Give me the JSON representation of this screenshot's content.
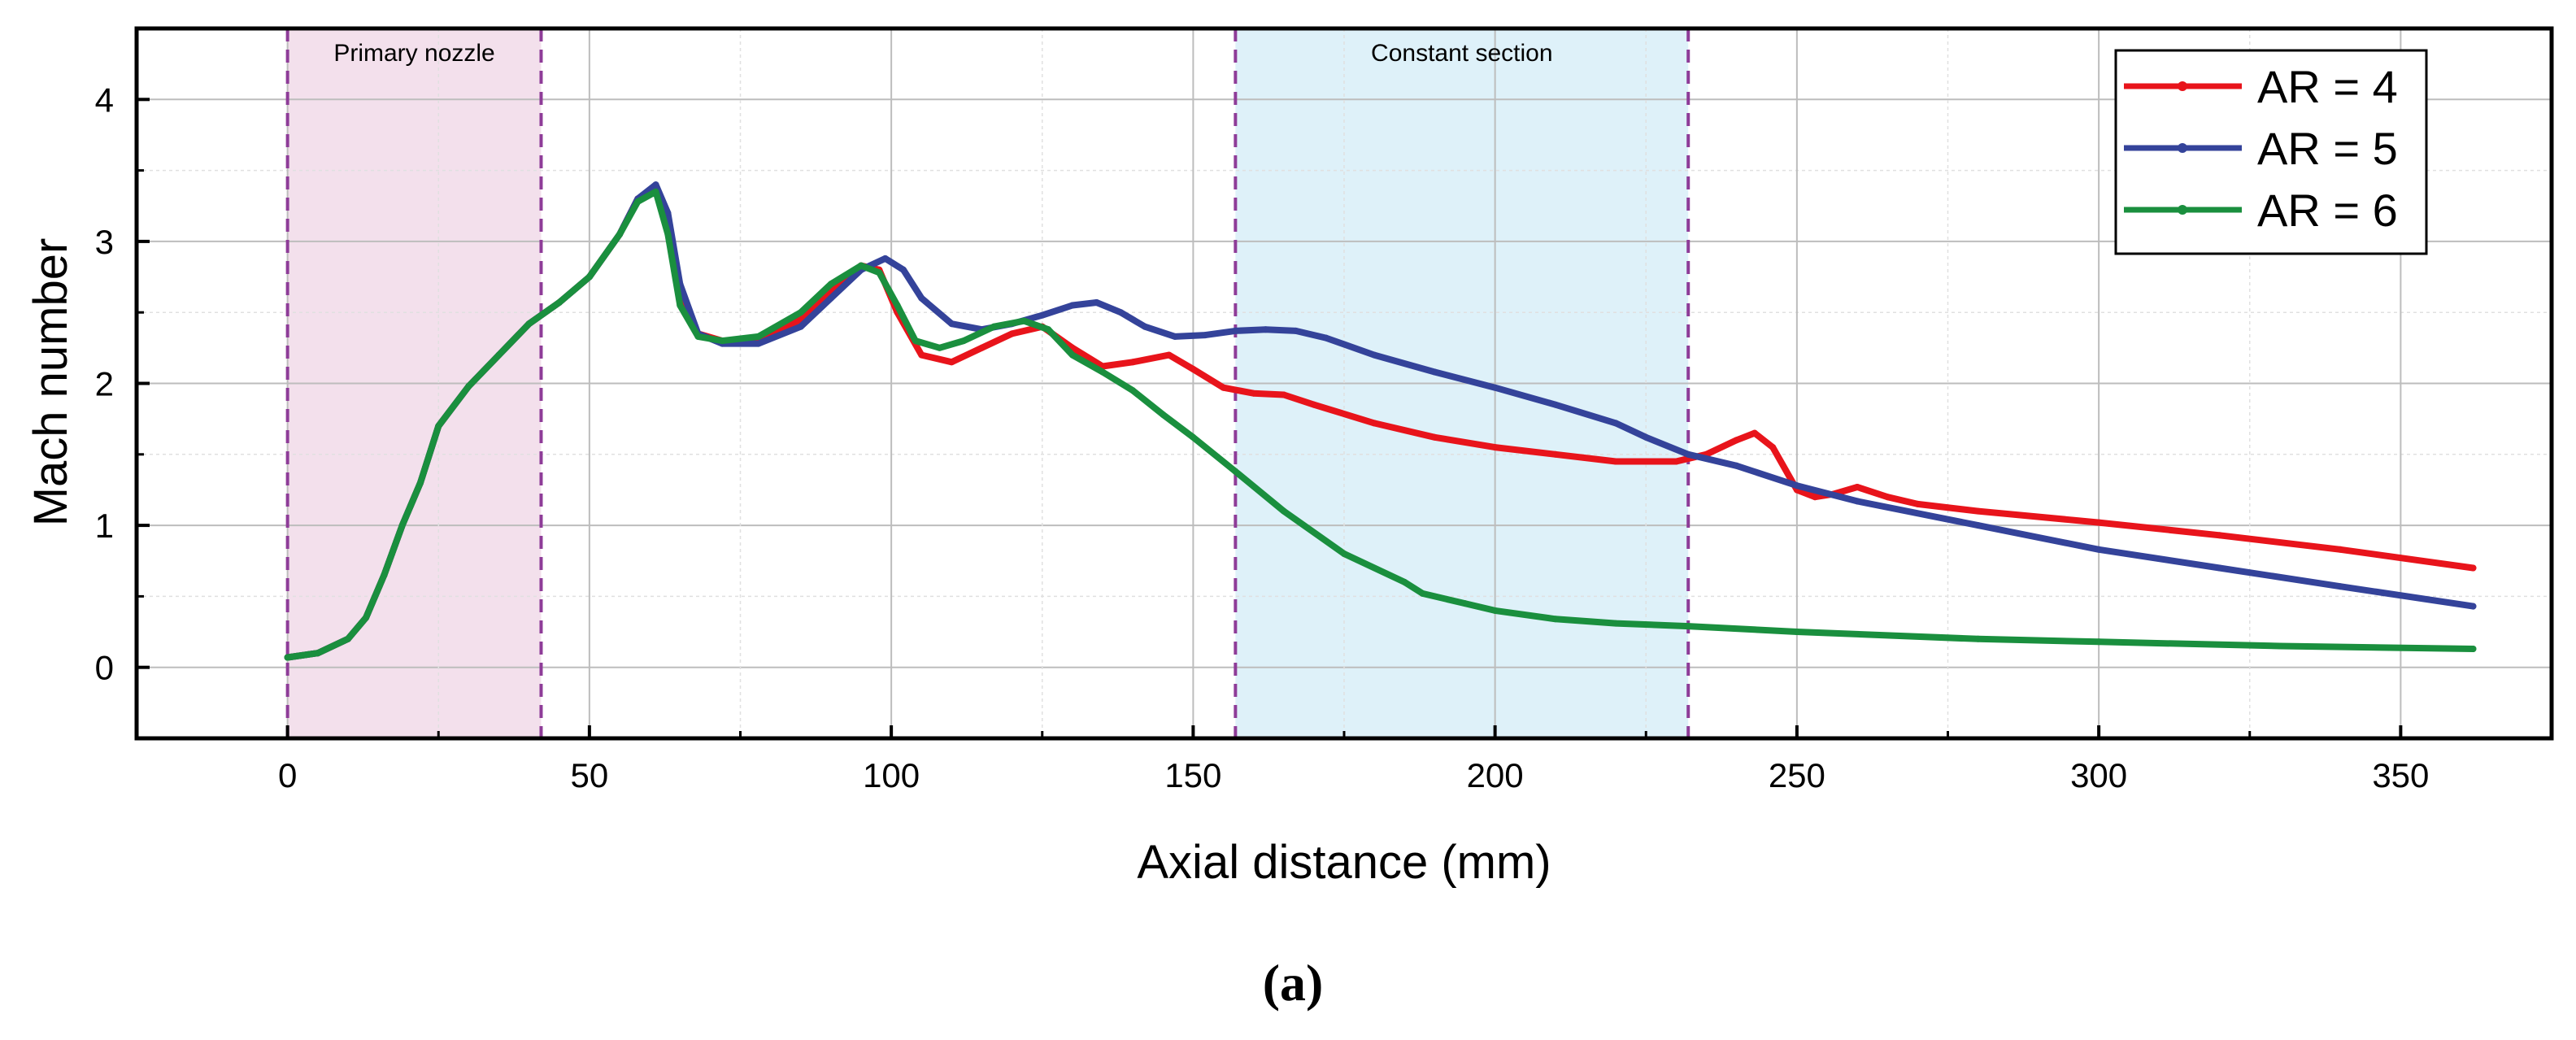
{
  "chart_data": {
    "type": "line",
    "xlabel": "Axial distance (mm)",
    "ylabel": "Mach number",
    "xlim": [
      -25,
      375
    ],
    "ylim": [
      -0.5,
      4.5
    ],
    "xticks": [
      0,
      50,
      100,
      150,
      200,
      250,
      300,
      350
    ],
    "yticks": [
      0,
      1,
      2,
      3,
      4
    ],
    "grid": true,
    "legend_position": "top-right",
    "regions": [
      {
        "label": "Primary nozzle",
        "x_start": 0,
        "x_end": 42,
        "color": "#f3e0ec"
      },
      {
        "label": "Constant section",
        "x_start": 157,
        "x_end": 232,
        "color": "#def1f9"
      }
    ],
    "series": [
      {
        "name": "AR = 4",
        "color": "#e8141b",
        "x": [
          0,
          5,
          10,
          13,
          16,
          19,
          22,
          25,
          30,
          35,
          40,
          45,
          50,
          55,
          58,
          61,
          63,
          65,
          68,
          72,
          78,
          85,
          90,
          95,
          98,
          101,
          105,
          110,
          115,
          120,
          125,
          130,
          135,
          140,
          146,
          150,
          155,
          160,
          165,
          170,
          180,
          190,
          200,
          210,
          220,
          230,
          235,
          240,
          243,
          246,
          250,
          253,
          256,
          260,
          265,
          270,
          280,
          300,
          320,
          340,
          362
        ],
        "y": [
          0.07,
          0.1,
          0.2,
          0.35,
          0.65,
          1.0,
          1.3,
          1.7,
          1.98,
          2.2,
          2.42,
          2.57,
          2.75,
          3.05,
          3.3,
          3.38,
          3.1,
          2.6,
          2.35,
          2.3,
          2.3,
          2.45,
          2.65,
          2.83,
          2.8,
          2.5,
          2.2,
          2.15,
          2.25,
          2.35,
          2.4,
          2.25,
          2.12,
          2.15,
          2.2,
          2.1,
          1.97,
          1.93,
          1.92,
          1.85,
          1.72,
          1.62,
          1.55,
          1.5,
          1.45,
          1.45,
          1.5,
          1.6,
          1.65,
          1.55,
          1.25,
          1.2,
          1.22,
          1.27,
          1.2,
          1.15,
          1.1,
          1.02,
          0.93,
          0.83,
          0.7
        ]
      },
      {
        "name": "AR = 5",
        "color": "#34439a",
        "x": [
          0,
          5,
          10,
          13,
          16,
          19,
          22,
          25,
          30,
          35,
          40,
          45,
          50,
          55,
          58,
          61,
          63,
          65,
          68,
          72,
          78,
          85,
          90,
          95,
          99,
          102,
          105,
          110,
          115,
          120,
          125,
          130,
          134,
          138,
          142,
          147,
          152,
          157,
          162,
          167,
          172,
          180,
          190,
          200,
          210,
          220,
          225,
          232,
          240,
          250,
          260,
          280,
          300,
          320,
          340,
          362
        ],
        "y": [
          0.07,
          0.1,
          0.2,
          0.35,
          0.65,
          1.0,
          1.3,
          1.7,
          1.98,
          2.2,
          2.42,
          2.57,
          2.75,
          3.05,
          3.3,
          3.4,
          3.2,
          2.7,
          2.35,
          2.28,
          2.28,
          2.4,
          2.6,
          2.8,
          2.88,
          2.8,
          2.6,
          2.42,
          2.38,
          2.42,
          2.48,
          2.55,
          2.57,
          2.5,
          2.4,
          2.33,
          2.34,
          2.37,
          2.38,
          2.37,
          2.32,
          2.2,
          2.08,
          1.97,
          1.85,
          1.72,
          1.62,
          1.5,
          1.42,
          1.28,
          1.17,
          1.0,
          0.83,
          0.7,
          0.57,
          0.43
        ]
      },
      {
        "name": "AR = 6",
        "color": "#1a8f3e",
        "x": [
          0,
          5,
          10,
          13,
          16,
          19,
          22,
          25,
          30,
          35,
          40,
          45,
          50,
          55,
          58,
          61,
          63,
          65,
          68,
          72,
          78,
          85,
          90,
          95,
          98,
          101,
          104,
          108,
          112,
          117,
          122,
          126,
          130,
          135,
          140,
          145,
          150,
          157,
          165,
          175,
          185,
          188,
          195,
          200,
          210,
          220,
          232,
          250,
          280,
          300,
          330,
          362
        ],
        "y": [
          0.07,
          0.1,
          0.2,
          0.35,
          0.65,
          1.0,
          1.3,
          1.7,
          1.98,
          2.2,
          2.42,
          2.57,
          2.75,
          3.05,
          3.28,
          3.35,
          3.05,
          2.55,
          2.33,
          2.3,
          2.33,
          2.5,
          2.7,
          2.83,
          2.78,
          2.55,
          2.3,
          2.25,
          2.3,
          2.4,
          2.44,
          2.38,
          2.2,
          2.08,
          1.95,
          1.78,
          1.62,
          1.38,
          1.1,
          0.8,
          0.6,
          0.52,
          0.45,
          0.4,
          0.34,
          0.31,
          0.29,
          0.25,
          0.2,
          0.18,
          0.15,
          0.13
        ]
      }
    ],
    "caption": "(a)"
  }
}
